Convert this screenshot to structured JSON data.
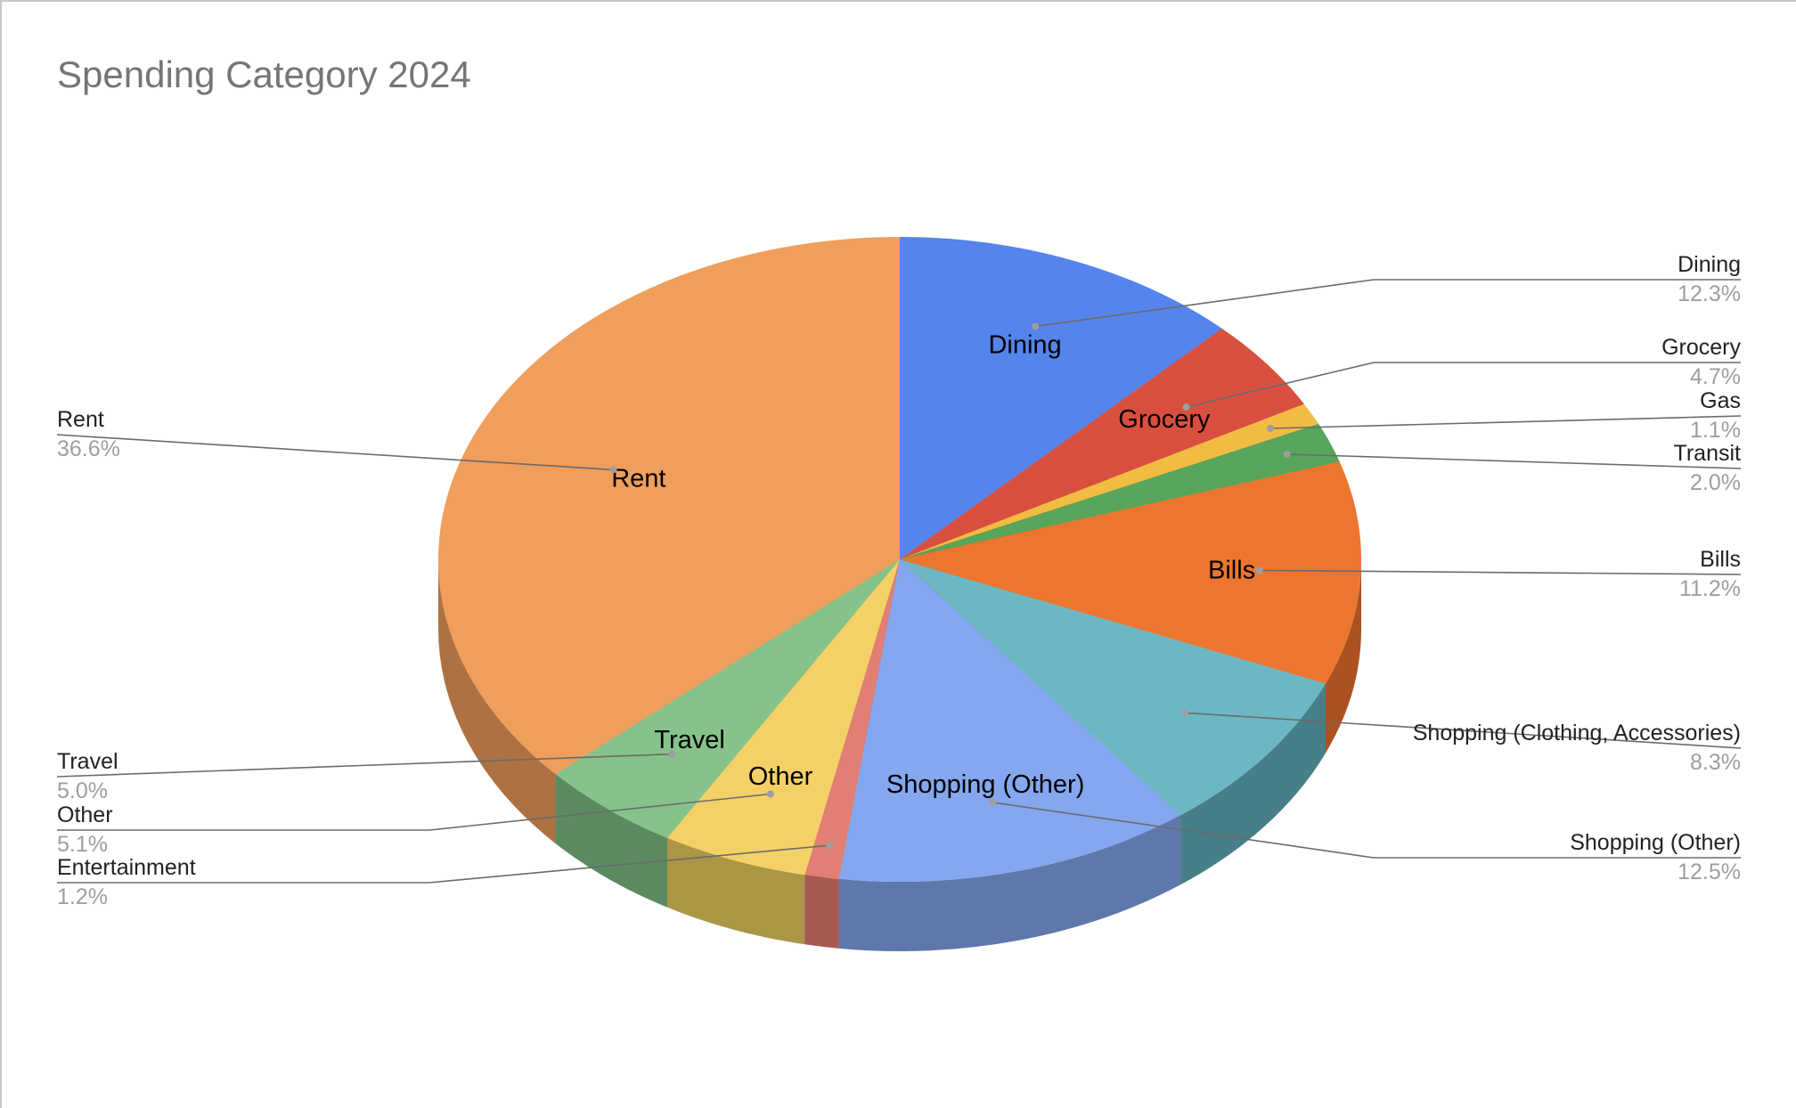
{
  "chart_data": {
    "type": "pie",
    "style": "3d",
    "title": "Spending Category 2024",
    "slices": [
      {
        "label": "Dining",
        "percent": "12.3%",
        "value": 12.3,
        "color": "#5484ec",
        "side_color": "#3d62b2"
      },
      {
        "label": "Grocery",
        "percent": "4.7%",
        "value": 4.7,
        "color": "#d94f3f",
        "side_color": "#a23b2f"
      },
      {
        "label": "Gas",
        "percent": "1.1%",
        "value": 1.1,
        "color": "#f2bc42",
        "side_color": "#b58c31"
      },
      {
        "label": "Transit",
        "percent": "2.0%",
        "value": 2.0,
        "color": "#58a55c",
        "side_color": "#427b45"
      },
      {
        "label": "Bills",
        "percent": "11.2%",
        "value": 11.2,
        "color": "#ec762f",
        "side_color": "#ac5220"
      },
      {
        "label": "Shopping (Clothing, Accessories)",
        "percent": "8.3%",
        "value": 8.3,
        "color": "#6bb8c4",
        "side_color": "#477f89"
      },
      {
        "label": "Shopping (Other)",
        "percent": "12.5%",
        "value": 12.5,
        "color": "#84a7ef",
        "side_color": "#5e78ab"
      },
      {
        "label": "Entertainment",
        "percent": "1.2%",
        "value": 1.2,
        "color": "#e17f74",
        "side_color": "#a65a52"
      },
      {
        "label": "Other",
        "percent": "5.1%",
        "value": 5.1,
        "color": "#f4d166",
        "side_color": "#ab9646"
      },
      {
        "label": "Travel",
        "percent": "5.0%",
        "value": 5.0,
        "color": "#86c38b",
        "side_color": "#5c8a60"
      },
      {
        "label": "Rent",
        "percent": "36.6%",
        "value": 36.6,
        "color": "#f09e5c",
        "side_color": "#ae7242"
      }
    ],
    "inner_labels": [
      "Dining",
      "Grocery",
      "Bills",
      "Shopping (Other)",
      "Other",
      "Travel",
      "Rent"
    ],
    "legend": "callouts"
  }
}
